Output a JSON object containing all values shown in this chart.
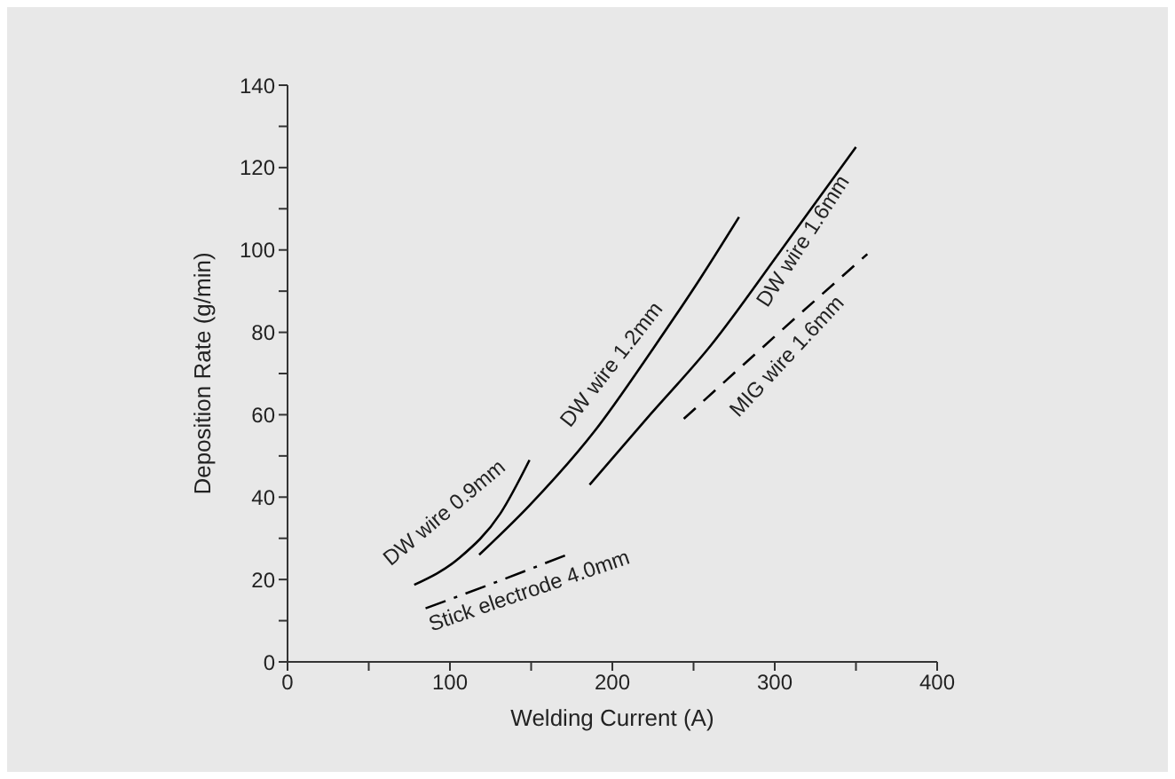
{
  "chart_data": {
    "type": "line",
    "xlabel": "Welding Current (A)",
    "ylabel": "Deposition Rate (g/min)",
    "xlim": [
      0,
      400
    ],
    "xticks": [
      0,
      {
        "value": 50,
        "label": null
      },
      100,
      {
        "value": 150,
        "label": null
      },
      200,
      {
        "value": 250,
        "label": null
      },
      300,
      {
        "value": 350,
        "label": null
      },
      400
    ],
    "ylim": [
      0,
      140
    ],
    "yticks": [
      0,
      {
        "value": 10,
        "label": null
      },
      20,
      {
        "value": 30,
        "label": null
      },
      40,
      {
        "value": 50,
        "label": null
      },
      60,
      {
        "value": 70,
        "label": null
      },
      80,
      {
        "value": 90,
        "label": null
      },
      100,
      {
        "value": 110,
        "label": null
      },
      120,
      {
        "value": 130,
        "label": null
      },
      140
    ],
    "grid": false,
    "legend": false,
    "marker": "none",
    "series": [
      {
        "name": "DW wire 0.9mm",
        "color": "#000000",
        "line_style": "solid",
        "x": [
          78,
          106,
          131,
          149
        ],
        "values": [
          18.7,
          25.3,
          36,
          49
        ]
      },
      {
        "name": "DW wire 1.2mm",
        "color": "#000000",
        "line_style": "solid",
        "x": [
          118,
          149,
          189,
          225,
          254,
          278
        ],
        "values": [
          26,
          38,
          56,
          76,
          93,
          108
        ]
      },
      {
        "name": "DW wire 1.6mm",
        "color": "#000000",
        "line_style": "solid",
        "x": [
          186,
          221,
          261,
          304,
          350
        ],
        "values": [
          43,
          59,
          77,
          100,
          125
        ]
      },
      {
        "name": "MIG wire 1.6mm",
        "color": "#000000",
        "line_style": "dashed",
        "x": [
          244,
          300,
          357
        ],
        "values": [
          59,
          79,
          99
        ]
      },
      {
        "name": "Stick electrode 4.0mm",
        "color": "#000000",
        "line_style": "dashdot",
        "x": [
          85,
          128,
          172
        ],
        "values": [
          13,
          19.3,
          26
        ]
      }
    ]
  }
}
